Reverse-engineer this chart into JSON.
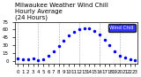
{
  "title": "Milwaukee Weather Wind Chill\nHourly Average\n(24 Hours)",
  "hours": [
    0,
    1,
    2,
    3,
    4,
    5,
    6,
    7,
    8,
    9,
    10,
    11,
    12,
    13,
    14,
    15,
    16,
    17,
    18,
    19,
    20,
    21,
    22,
    23
  ],
  "wind_chill": [
    5,
    3,
    2,
    4,
    1,
    2,
    10,
    18,
    28,
    38,
    48,
    55,
    60,
    62,
    63,
    58,
    50,
    40,
    30,
    18,
    10,
    6,
    3,
    1
  ],
  "line_color": "#0000ff",
  "marker": ".",
  "marker_size": 3,
  "grid_color": "#aaaaaa",
  "bg_color": "#ffffff",
  "border_color": "#000000",
  "legend_label": "Wind Chill",
  "legend_color": "#0000ff",
  "ylim": [
    -5,
    75
  ],
  "xlim": [
    -0.5,
    23.5
  ],
  "ytick_labels": [
    "75",
    "60",
    "45",
    "30",
    "15",
    "0"
  ],
  "ytick_values": [
    75,
    60,
    45,
    30,
    15,
    0
  ],
  "xtick_labels": [
    "0",
    "1",
    "2",
    "3",
    "4",
    "5",
    "6",
    "7",
    "8",
    "9",
    "10",
    "11",
    "12",
    "13",
    "14",
    "15",
    "16",
    "17",
    "18",
    "19",
    "20",
    "21",
    "22",
    "23"
  ],
  "title_fontsize": 5,
  "tick_fontsize": 4,
  "figsize": [
    1.6,
    0.87
  ],
  "dpi": 100
}
